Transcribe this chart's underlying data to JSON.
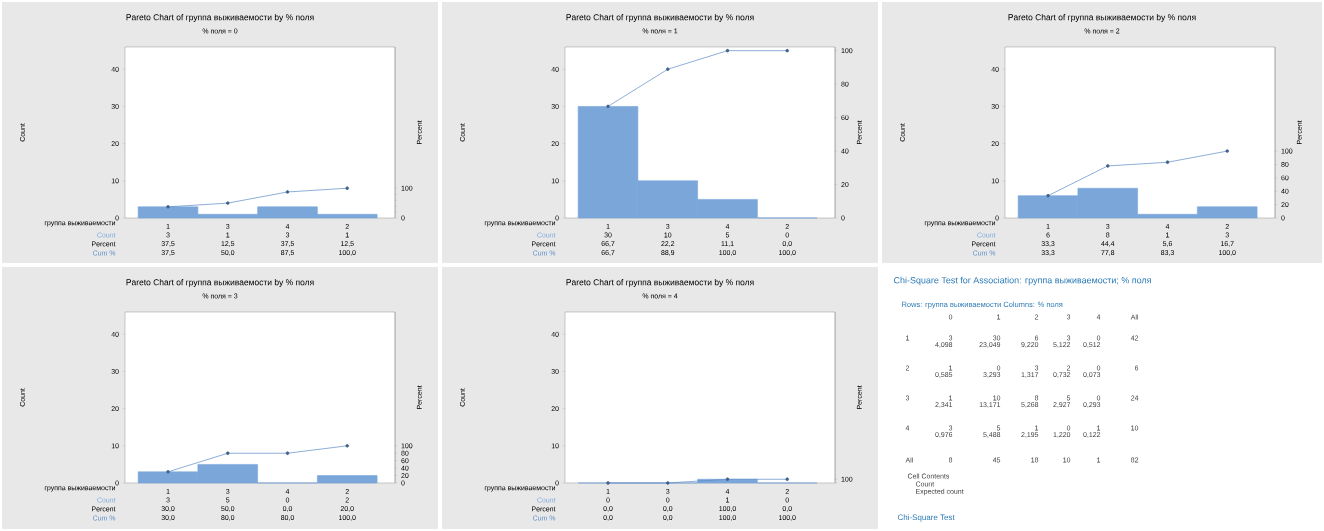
{
  "chart_data": [
    {
      "type": "bar",
      "title": "Pareto Chart of группа выживаемости by % поля",
      "subtitle": "% поля = 0",
      "xlabel": "группа выживаемости",
      "ylabel": "Count",
      "y2label": "Percent",
      "categories": [
        "1",
        "3",
        "4",
        "2"
      ],
      "ylim": [
        0,
        46
      ],
      "yticks": [
        0,
        10,
        20,
        30,
        40
      ],
      "y2lim": [
        0,
        575
      ],
      "y2ticks": [
        0,
        {
          "value": 20,
          "label": null
        },
        {
          "value": 40,
          "label": null
        },
        {
          "value": 60,
          "label": null
        },
        {
          "value": 80,
          "label": null
        },
        100
      ],
      "series": [
        {
          "name": "Count",
          "type": "bar",
          "color": "#7aa6da",
          "values": [
            3,
            1,
            3,
            1
          ],
          "value_labels": [
            "3",
            "1",
            "3",
            "1"
          ]
        },
        {
          "name": "Cum %",
          "type": "line",
          "axis": "y2",
          "color": "#5b8bc6",
          "marker": "circle",
          "values": [
            37.5,
            50,
            87.5,
            100
          ],
          "value_labels": [
            "37,5",
            "50,0",
            "87,5",
            "100,0"
          ]
        }
      ],
      "annotations": [
        "Percent",
        "37,5",
        "12,5",
        "37,5",
        "12,5"
      ]
    },
    {
      "type": "bar",
      "title": "Pareto Chart of группа выживаемости by % поля",
      "subtitle": "% поля = 1",
      "xlabel": "группа выживаемости",
      "ylabel": "Count",
      "y2label": "Percent",
      "categories": [
        "1",
        "3",
        "4",
        "2"
      ],
      "ylim": [
        0,
        46
      ],
      "yticks": [
        0,
        10,
        20,
        30,
        40
      ],
      "y2lim": [
        0,
        102.2
      ],
      "y2ticks": [
        0,
        20,
        40,
        60,
        80,
        100
      ],
      "series": [
        {
          "name": "Count",
          "type": "bar",
          "color": "#7aa6da",
          "values": [
            30,
            10,
            5,
            0
          ],
          "value_labels": [
            "30",
            "10",
            "5",
            "0"
          ]
        },
        {
          "name": "Cum %",
          "type": "line",
          "axis": "y2",
          "color": "#5b8bc6",
          "marker": "circle",
          "values": [
            66.7,
            88.9,
            100,
            100
          ],
          "value_labels": [
            "66,7",
            "88,9",
            "100,0",
            "100,0"
          ]
        }
      ],
      "annotations": [
        "Percent",
        "66,7",
        "22,2",
        "11,1",
        "0,0"
      ]
    },
    {
      "type": "bar",
      "title": "Pareto Chart of группа выживаемости by % поля",
      "subtitle": "% поля = 2",
      "xlabel": "группа выживаемости",
      "ylabel": "Count",
      "y2label": "Percent",
      "categories": [
        "1",
        "3",
        "4",
        "2"
      ],
      "ylim": [
        0,
        46
      ],
      "yticks": [
        0,
        10,
        20,
        30,
        40
      ],
      "y2lim": [
        0,
        255.6
      ],
      "y2ticks": [
        0,
        20,
        40,
        60,
        80,
        100
      ],
      "series": [
        {
          "name": "Count",
          "type": "bar",
          "color": "#7aa6da",
          "values": [
            6,
            8,
            1,
            3
          ],
          "value_labels": [
            "6",
            "8",
            "1",
            "3"
          ]
        },
        {
          "name": "Cum %",
          "type": "line",
          "axis": "y2",
          "color": "#5b8bc6",
          "marker": "circle",
          "values": [
            33.3,
            77.8,
            83.3,
            100
          ],
          "value_labels": [
            "33,3",
            "77,8",
            "83,3",
            "100,0"
          ]
        }
      ],
      "annotations": [
        "Percent",
        "33,3",
        "44,4",
        "5,6",
        "16,7"
      ]
    },
    {
      "type": "bar",
      "title": "Pareto Chart of группа выживаемости by % поля",
      "subtitle": "% поля = 3",
      "xlabel": "группа выживаемости",
      "ylabel": "Count",
      "y2label": "Percent",
      "categories": [
        "1",
        "3",
        "4",
        "2"
      ],
      "ylim": [
        0,
        46
      ],
      "yticks": [
        0,
        10,
        20,
        30,
        40
      ],
      "y2lim": [
        0,
        460
      ],
      "y2ticks": [
        0,
        20,
        40,
        60,
        80,
        100
      ],
      "series": [
        {
          "name": "Count",
          "type": "bar",
          "color": "#7aa6da",
          "values": [
            3,
            5,
            0,
            2
          ],
          "value_labels": [
            "3",
            "5",
            "0",
            "2"
          ]
        },
        {
          "name": "Cum %",
          "type": "line",
          "axis": "y2",
          "color": "#5b8bc6",
          "marker": "circle",
          "values": [
            30,
            80,
            80,
            100
          ],
          "value_labels": [
            "30,0",
            "80,0",
            "80,0",
            "100,0"
          ]
        }
      ],
      "annotations": [
        "Percent",
        "30,0",
        "50,0",
        "0,0",
        "20,0"
      ]
    },
    {
      "type": "bar",
      "title": "Pareto Chart of группа выживаемости by % поля",
      "subtitle": "% поля = 4",
      "xlabel": "группа выживаемости",
      "ylabel": "Count",
      "y2label": "Percent",
      "categories": [
        "1",
        "3",
        "4",
        "2"
      ],
      "ylim": [
        0,
        46
      ],
      "yticks": [
        0,
        10,
        20,
        30,
        40
      ],
      "y2lim": [
        0,
        4600
      ],
      "y2ticks": [
        {
          "value": 0,
          "label": null
        },
        100
      ],
      "series": [
        {
          "name": "Count",
          "type": "bar",
          "color": "#7aa6da",
          "values": [
            0,
            0,
            1,
            0
          ],
          "value_labels": [
            "0",
            "0",
            "1",
            "0"
          ]
        },
        {
          "name": "Cum %",
          "type": "line",
          "axis": "y2",
          "color": "#5b8bc6",
          "marker": "circle",
          "values": [
            0,
            0,
            100,
            100
          ],
          "value_labels": [
            "0,0",
            "0,0",
            "100,0",
            "100,0"
          ]
        }
      ],
      "annotations": [
        "Percent",
        "0,0",
        "0,0",
        "100,0",
        "0,0"
      ]
    },
    {
      "type": "other",
      "title": "Chi-Square Test for Association: группа выживаемости; % поля",
      "subtitle": "Rows: группа выживаемости   Columns: % поля",
      "annotations": [
        "0",
        "1",
        "2",
        "3",
        "4",
        "All",
        "1",
        "3",
        "30",
        "6",
        "3",
        "0",
        "42",
        "4,098",
        "23,049",
        "9,220",
        "5,122",
        "0,512",
        "2",
        "1",
        "0",
        "3",
        "2",
        "0",
        "6",
        "0,585",
        "3,293",
        "1,317",
        "0,732",
        "0,073",
        "3",
        "1",
        "10",
        "8",
        "5",
        "0",
        "24",
        "2,341",
        "13,171",
        "5,268",
        "2,927",
        "0,293",
        "4",
        "3",
        "5",
        "1",
        "0",
        "1",
        "10",
        "0,976",
        "5,488",
        "2,195",
        "1,220",
        "0,122",
        "All",
        "8",
        "45",
        "18",
        "10",
        "1",
        "82",
        "Cell Contents",
        "Count",
        "Expected count",
        "Chi-Square Test"
      ]
    }
  ]
}
